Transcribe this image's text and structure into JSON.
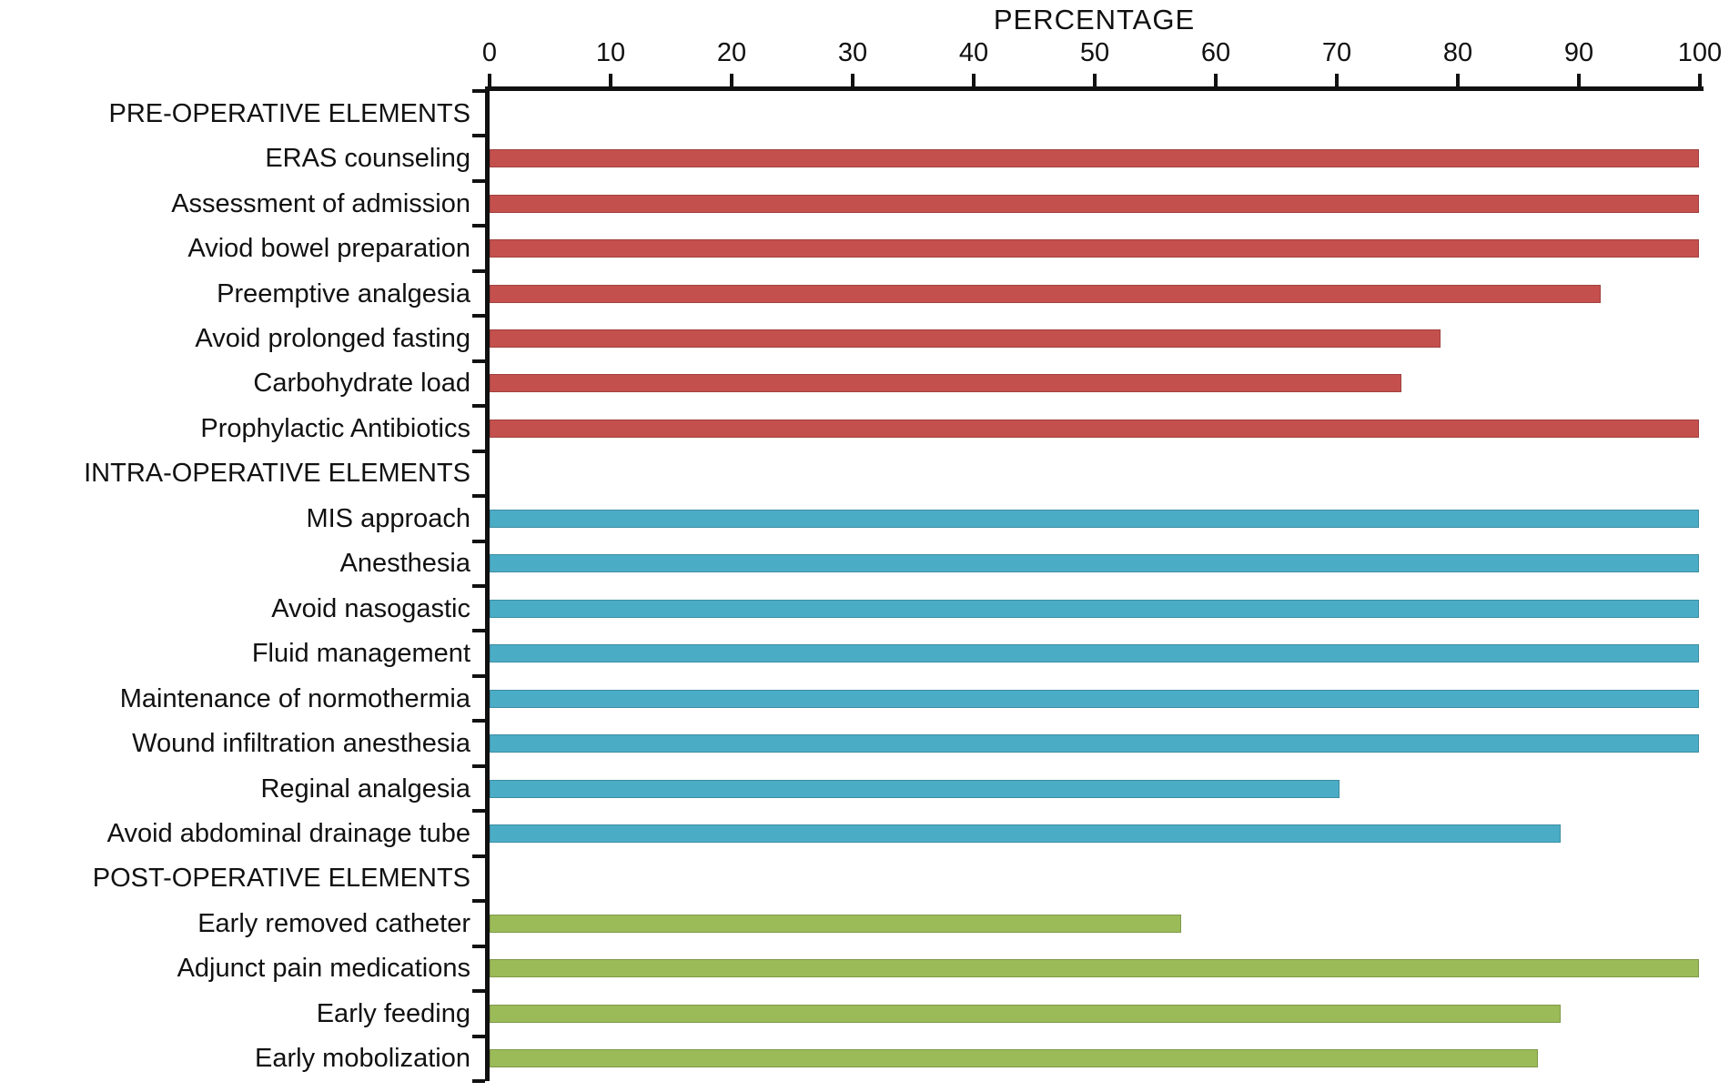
{
  "chart_data": {
    "type": "bar",
    "orientation": "horizontal",
    "title": "PERCENTAGE",
    "xlabel": "PERCENTAGE",
    "xlim": [
      0,
      100
    ],
    "x_ticks": [
      0,
      10,
      20,
      30,
      40,
      50,
      60,
      70,
      80,
      90,
      100
    ],
    "grid": false,
    "legend": "none",
    "axis_color": "#111111",
    "sections": [
      {
        "header": "PRE-OPERATIVE ELEMENTS",
        "color": "#C4504D",
        "items": [
          {
            "label": "ERAS counseling",
            "value": 100
          },
          {
            "label": "Assessment of admission",
            "value": 100
          },
          {
            "label": "Aviod bowel preparation",
            "value": 100
          },
          {
            "label": "Preemptive analgesia",
            "value": 91.9
          },
          {
            "label": "Avoid prolonged fasting",
            "value": 78.6
          },
          {
            "label": "Carbohydrate load",
            "value": 75.4
          },
          {
            "label": "Prophylactic Antibiotics",
            "value": 100
          }
        ]
      },
      {
        "header": "INTRA-OPERATIVE ELEMENTS",
        "color": "#4BACC6",
        "items": [
          {
            "label": "MIS approach",
            "value": 100
          },
          {
            "label": "Anesthesia",
            "value": 100
          },
          {
            "label": "Avoid nasogastic",
            "value": 100
          },
          {
            "label": "Fluid management",
            "value": 100
          },
          {
            "label": "Maintenance of normothermia",
            "value": 100
          },
          {
            "label": "Wound infiltration anesthesia",
            "value": 100
          },
          {
            "label": "Reginal analgesia",
            "value": 70.3
          },
          {
            "label": "Avoid abdominal drainage tube",
            "value": 88.6
          }
        ]
      },
      {
        "header": "POST-OPERATIVE ELEMENTS",
        "color": "#9BBB59",
        "items": [
          {
            "label": "Early removed catheter",
            "value": 57.2
          },
          {
            "label": "Adjunct pain medications",
            "value": 100
          },
          {
            "label": "Early feeding",
            "value": 88.6
          },
          {
            "label": "Early mobolization",
            "value": 86.7
          }
        ]
      }
    ]
  }
}
